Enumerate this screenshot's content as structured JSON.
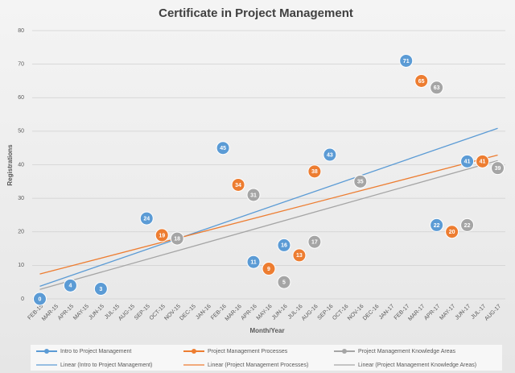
{
  "chart_data": {
    "type": "scatter",
    "title": "Certificate in Project Management",
    "x_label": "Month/Year",
    "y_label": "Registrations",
    "categories": [
      "FEB-15",
      "MAR-15",
      "APR-15",
      "MAY-15",
      "JUN-15",
      "JUL-15",
      "AUG-15",
      "SEP-15",
      "OCT-15",
      "NOV-15",
      "DEC-15",
      "JAN-16",
      "FEB-16",
      "MAR-16",
      "APR-16",
      "MAY-16",
      "JUN-16",
      "JUL-16",
      "AUG-16",
      "SEP-16",
      "OCT-16",
      "NOV-16",
      "DEC-16",
      "JAN-17",
      "FEB-17",
      "MAR-17",
      "APR-17",
      "MAY-17",
      "JUN-17",
      "JUL-17",
      "AUG-17"
    ],
    "series": [
      {
        "name": "Intro to Project Management",
        "color": "#5b9bd5",
        "values": [
          0,
          null,
          4,
          null,
          3,
          null,
          null,
          24,
          null,
          null,
          null,
          null,
          45,
          null,
          11,
          null,
          16,
          null,
          null,
          43,
          null,
          null,
          null,
          null,
          71,
          null,
          22,
          null,
          41,
          null,
          null
        ]
      },
      {
        "name": "Project Management Processes",
        "color": "#ed7d31",
        "values": [
          null,
          null,
          null,
          null,
          null,
          null,
          null,
          null,
          19,
          null,
          null,
          null,
          null,
          34,
          null,
          9,
          null,
          13,
          38,
          null,
          null,
          null,
          null,
          null,
          null,
          65,
          null,
          20,
          null,
          41,
          null
        ]
      },
      {
        "name": "Project Management Knowledge Areas",
        "color": "#a5a5a5",
        "values": [
          null,
          null,
          null,
          null,
          null,
          null,
          null,
          null,
          null,
          18,
          null,
          null,
          null,
          null,
          31,
          null,
          5,
          null,
          17,
          null,
          null,
          35,
          null,
          null,
          null,
          null,
          63,
          null,
          22,
          null,
          39
        ]
      }
    ],
    "trendlines": [
      {
        "name": "Linear (Intro to Project Management)",
        "color": "#5b9bd5"
      },
      {
        "name": "Linear (Project Management Processes)",
        "color": "#ed7d31"
      },
      {
        "name": "Linear (Project Management Knowledge Areas)",
        "color": "#a5a5a5"
      }
    ],
    "ylim": [
      0,
      80
    ],
    "yticks": [
      0,
      10,
      20,
      30,
      40,
      50,
      60,
      70,
      80
    ],
    "grid": true,
    "legend": "bottom"
  }
}
